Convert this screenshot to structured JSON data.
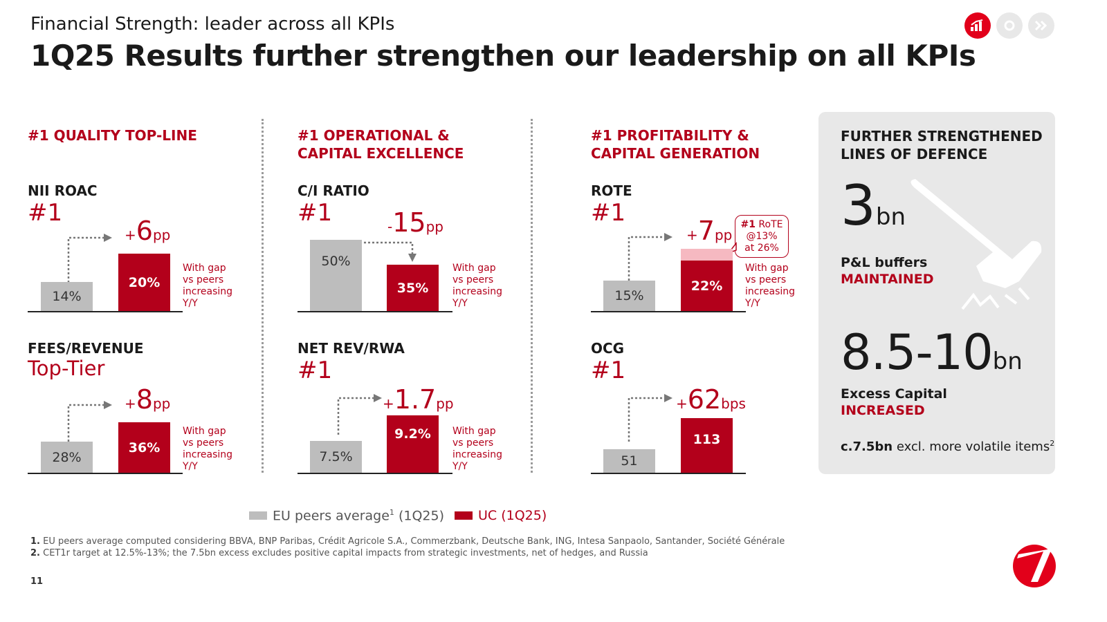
{
  "header": {
    "kicker": "Financial Strength: leader across all KPIs",
    "title": "1Q25 Results further strengthen our leadership on all KPIs"
  },
  "colors": {
    "accent": "#b3001b",
    "peer_grey": "#bdbdbd",
    "panel_bg": "#e8e8e8"
  },
  "top_icons": [
    "chart-icon",
    "refresh-icon",
    "forward-icon"
  ],
  "sections": {
    "s1": {
      "heading_l1": "#1 QUALITY TOP-LINE"
    },
    "s2": {
      "heading_l1": "#1 OPERATIONAL &",
      "heading_l2": "CAPITAL EXCELLENCE"
    },
    "s3": {
      "heading_l1": "#1 PROFITABILITY &",
      "heading_l2": "CAPITAL GENERATION"
    }
  },
  "kpis": {
    "nii": {
      "name": "NII ROAC",
      "rank": "#1",
      "peer": "14%",
      "uc": "20%",
      "sign": "+",
      "delta": "6",
      "unit": "pp",
      "note": [
        "With gap",
        "vs peers",
        "increasing",
        "Y/Y"
      ]
    },
    "fees": {
      "name": "FEES/REVENUE",
      "rank": "Top-Tier",
      "peer": "28%",
      "uc": "36%",
      "sign": "+",
      "delta": "8",
      "unit": "pp",
      "note": [
        "With gap",
        "vs peers",
        "increasing",
        "Y/Y"
      ]
    },
    "ci": {
      "name": "C/I RATIO",
      "rank": "#1",
      "peer": "50%",
      "uc": "35%",
      "sign": "-",
      "delta": "15",
      "unit": "pp",
      "note": [
        "With gap",
        "vs peers",
        "increasing",
        "Y/Y"
      ]
    },
    "netrev": {
      "name": "NET REV/RWA",
      "rank": "#1",
      "peer": "7.5%",
      "uc": "9.2%",
      "sign": "+",
      "delta": "1.7",
      "unit": "pp",
      "note": [
        "With gap",
        "vs peers",
        "increasing",
        "Y/Y"
      ]
    },
    "rote": {
      "name": "ROTE",
      "rank": "#1",
      "peer": "15%",
      "uc": "22%",
      "sign": "+",
      "delta": "7",
      "unit": "pp",
      "note": [
        "With gap",
        "vs peers",
        "increasing",
        "Y/Y"
      ],
      "callout": {
        "strong": "#1",
        "l1": " RoTE",
        "l2": "@13%",
        "l3": "at 26%"
      }
    },
    "ocg": {
      "name": "OCG",
      "rank": "#1",
      "peer": "51",
      "uc": "113",
      "sign": "+",
      "delta": "62",
      "unit": "bps"
    }
  },
  "defence": {
    "heading_l1": "FURTHER STRENGTHENED",
    "heading_l2": "LINES OF DEFENCE",
    "pl_value": "3",
    "pl_unit": "bn",
    "pl_label": "P&L buffers",
    "pl_status": "MAINTAINED",
    "cap_value": "8.5-10",
    "cap_unit": "bn",
    "cap_label": "Excess Capital",
    "cap_status": "INCREASED",
    "excl_strong": "c.7.5bn",
    "excl_text": " excl. more volatile items",
    "excl_sup": "2"
  },
  "legend": {
    "peers": "EU peers average",
    "peers_sup": "1",
    "peers_period": " (1Q25)",
    "uc": "UC (1Q25)"
  },
  "footnotes": {
    "f1_num": "1.",
    "f1": "  EU peers average computed considering BBVA, BNP Paribas, Crédit Agricole S.A., Commerzbank, Deutsche Bank, ING, Intesa Sanpaolo, Santander, Société Générale",
    "f2_num": "2.",
    "f2": " CET1r target at 12.5%-13%; the 7.5bn excess excludes positive capital impacts from strategic investments, net of hedges, and Russia"
  },
  "page_number": "11"
}
